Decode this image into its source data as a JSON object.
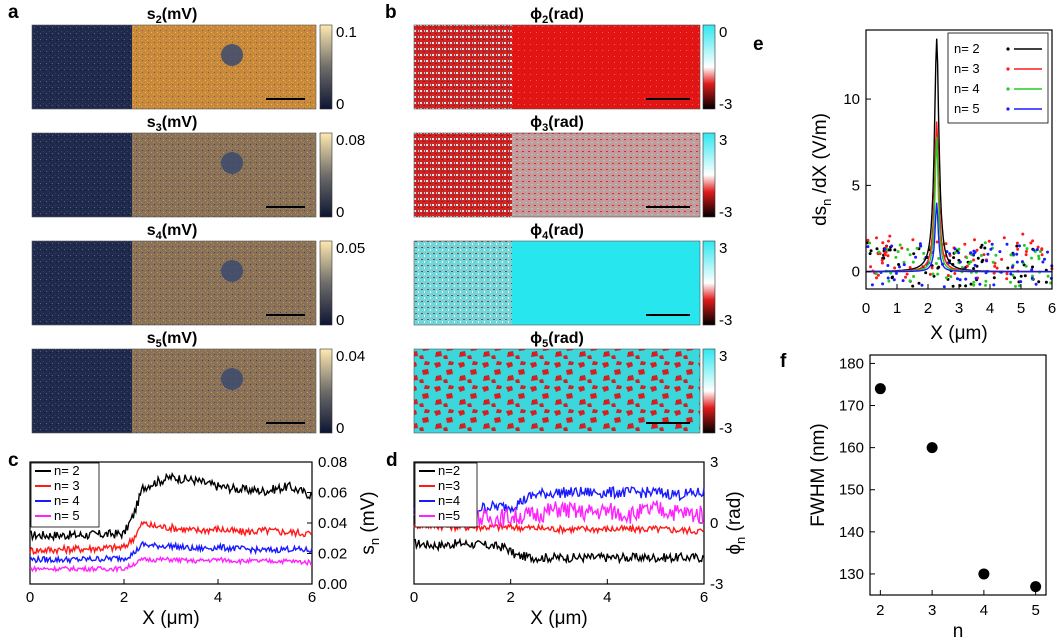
{
  "panel_labels": {
    "a": "a",
    "b": "b",
    "c": "c",
    "d": "d",
    "e": "e",
    "f": "f"
  },
  "colors": {
    "amp_dark": "#1f2a4d",
    "amp_light": "#e5a13e",
    "phase_red": "#d81e1e",
    "phase_cyan": "#2ee8ef",
    "phase_white": "#ffffff",
    "phase_black": "#000000",
    "n2": "#000000",
    "n3": "#ff1a1a",
    "n4": "#1a1aff",
    "n5": "#ff22ff",
    "n4_e": "#22cc22"
  },
  "maps_a": [
    {
      "title_main": "s",
      "sub": "2",
      "unit": "(mV)",
      "cb_max": "0.1",
      "cb_min": "0"
    },
    {
      "title_main": "s",
      "sub": "3",
      "unit": "(mV)",
      "cb_max": "0.08",
      "cb_min": "0"
    },
    {
      "title_main": "s",
      "sub": "4",
      "unit": "(mV)",
      "cb_max": "0.05",
      "cb_min": "0"
    },
    {
      "title_main": "s",
      "sub": "5",
      "unit": "(mV)",
      "cb_max": "0.04",
      "cb_min": "0"
    }
  ],
  "maps_b": [
    {
      "title_main": "ϕ",
      "sub": "2",
      "unit": "(rad)",
      "cb_max": "0",
      "cb_min": "-3"
    },
    {
      "title_main": "ϕ",
      "sub": "3",
      "unit": "(rad)",
      "cb_max": "3",
      "cb_min": "-3"
    },
    {
      "title_main": "ϕ",
      "sub": "4",
      "unit": "(rad)",
      "cb_max": "3",
      "cb_min": "-3"
    },
    {
      "title_main": "ϕ",
      "sub": "5",
      "unit": "(rad)",
      "cb_max": "3",
      "cb_min": "-3"
    }
  ],
  "chart_data": [
    {
      "id": "c",
      "type": "line",
      "xlabel": "X (μm)",
      "ylabel_right": "s",
      "ylabel_right_sub": "n",
      "ylabel_right_unit": "(mV)",
      "xlim": [
        0,
        6
      ],
      "ylim": [
        0,
        0.08
      ],
      "xticks": [
        "0",
        "2",
        "4",
        "6"
      ],
      "yticks": [
        "0.00",
        "0.02",
        "0.04",
        "0.06",
        "0.08"
      ],
      "legend": [
        "n= 2",
        "n= 3",
        "n= 4",
        "n= 5"
      ],
      "series": [
        {
          "name": "n= 2",
          "x": [
            0,
            1,
            2,
            2.2,
            2.4,
            2.6,
            3,
            3.5,
            4,
            4.5,
            5,
            5.5,
            6
          ],
          "y": [
            0.032,
            0.032,
            0.033,
            0.045,
            0.063,
            0.066,
            0.07,
            0.068,
            0.064,
            0.062,
            0.061,
            0.064,
            0.058
          ]
        },
        {
          "name": "n= 3",
          "x": [
            0,
            1,
            2,
            2.2,
            2.4,
            2.6,
            3,
            3.5,
            4,
            4.5,
            5,
            5.5,
            6
          ],
          "y": [
            0.022,
            0.023,
            0.024,
            0.03,
            0.04,
            0.038,
            0.037,
            0.035,
            0.036,
            0.034,
            0.035,
            0.034,
            0.033
          ]
        },
        {
          "name": "n= 4",
          "x": [
            0,
            1,
            2,
            2.2,
            2.4,
            2.6,
            3,
            3.5,
            4,
            4.5,
            5,
            5.5,
            6
          ],
          "y": [
            0.016,
            0.016,
            0.017,
            0.02,
            0.026,
            0.025,
            0.025,
            0.023,
            0.024,
            0.023,
            0.022,
            0.023,
            0.022
          ]
        },
        {
          "name": "n= 5",
          "x": [
            0,
            1,
            2,
            2.2,
            2.4,
            2.6,
            3,
            3.5,
            4,
            4.5,
            5,
            5.5,
            6
          ],
          "y": [
            0.01,
            0.01,
            0.01,
            0.013,
            0.016,
            0.016,
            0.016,
            0.015,
            0.016,
            0.015,
            0.015,
            0.015,
            0.014
          ]
        }
      ]
    },
    {
      "id": "d",
      "type": "line",
      "xlabel": "X (μm)",
      "ylabel_right": "ϕ",
      "ylabel_right_sub": "n",
      "ylabel_right_unit": "(rad)",
      "xlim": [
        0,
        6
      ],
      "ylim": [
        -3,
        3
      ],
      "xticks": [
        "0",
        "2",
        "4",
        "6"
      ],
      "yticks": [
        "-3",
        "0",
        "3"
      ],
      "legend": [
        "n=2",
        "n=3",
        "n=4",
        "n=5"
      ],
      "series": [
        {
          "name": "n=2",
          "x": [
            0,
            0.5,
            1,
            1.5,
            1.9,
            2.1,
            2.5,
            3,
            4,
            5,
            6
          ],
          "y": [
            -1.0,
            -1.1,
            -1.0,
            -1.1,
            -1.2,
            -1.6,
            -1.7,
            -1.7,
            -1.7,
            -1.7,
            -1.7
          ]
        },
        {
          "name": "n=3",
          "x": [
            0,
            1,
            2,
            3,
            4,
            5,
            6
          ],
          "y": [
            -0.1,
            -0.2,
            -0.2,
            -0.3,
            -0.3,
            -0.3,
            -0.4
          ]
        },
        {
          "name": "n=4",
          "x": [
            0,
            0.5,
            1,
            1.5,
            2,
            2.5,
            3,
            4,
            5,
            5.5,
            6
          ],
          "y": [
            0.7,
            0.6,
            0.5,
            0.8,
            0.8,
            1.4,
            1.5,
            1.5,
            1.5,
            1.4,
            1.5
          ]
        },
        {
          "name": "n=5",
          "x": [
            0,
            0.5,
            1,
            1.5,
            2,
            2.5,
            3,
            3.5,
            4,
            4.5,
            5,
            5.5,
            6
          ],
          "y": [
            0.3,
            0.2,
            0.4,
            0.2,
            0.3,
            0.4,
            0.7,
            0.5,
            0.6,
            0.4,
            0.7,
            0.5,
            0.4
          ]
        }
      ]
    },
    {
      "id": "e",
      "type": "scatter+line",
      "xlabel": "X (μm)",
      "ylabel": "ds",
      "ylabel_sub": "n",
      "ylabel_unit": "/dX (V/m)",
      "xlim": [
        0,
        6
      ],
      "ylim": [
        -1,
        14
      ],
      "xticks": [
        "0",
        "1",
        "2",
        "3",
        "4",
        "5",
        "6"
      ],
      "yticks": [
        "0",
        "5",
        "10"
      ],
      "legend": [
        "n= 2",
        "n= 3",
        "n= 4",
        "n= 5"
      ],
      "peak_x": 2.28,
      "series": [
        {
          "name": "n= 2",
          "peak": 13.5,
          "fwhm_um": 0.174
        },
        {
          "name": "n= 3",
          "peak": 8.7,
          "fwhm_um": 0.16
        },
        {
          "name": "n= 4",
          "peak": 7.8,
          "fwhm_um": 0.13
        },
        {
          "name": "n= 5",
          "peak": 4.0,
          "fwhm_um": 0.127
        }
      ]
    },
    {
      "id": "f",
      "type": "scatter",
      "xlabel": "n",
      "ylabel": "FWHM (nm)",
      "xlim": [
        1.8,
        5.2
      ],
      "ylim": [
        125,
        182
      ],
      "xticks": [
        "2",
        "3",
        "4",
        "5"
      ],
      "yticks": [
        "130",
        "140",
        "150",
        "160",
        "170",
        "180"
      ],
      "x": [
        2,
        3,
        4,
        5
      ],
      "y": [
        174,
        160,
        130,
        127
      ]
    }
  ]
}
